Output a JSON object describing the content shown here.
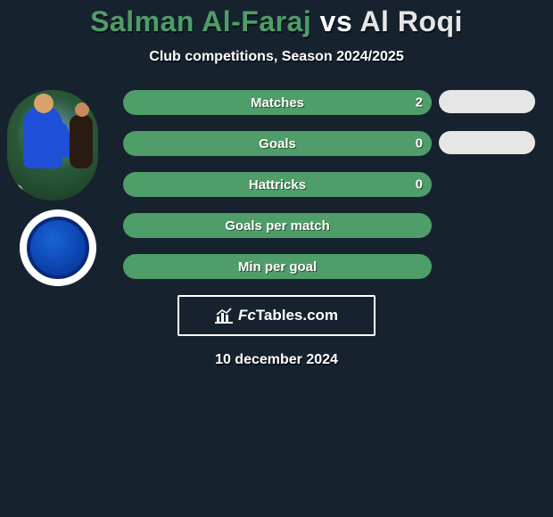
{
  "title": {
    "player1": "Salman Al-Faraj",
    "vs": " vs ",
    "player2": "Al Roqi",
    "player1_color": "#4f9d68",
    "vs_color": "#ffffff",
    "player2_color": "#e6e6e6"
  },
  "subtitle": "Club competitions, Season 2024/2025",
  "stats": {
    "bar_color_green": "#4f9d68",
    "bar_color_grey": "#e6e6e6",
    "rows": [
      {
        "label": "Matches",
        "value": "2",
        "show_value": true,
        "right_pill": true
      },
      {
        "label": "Goals",
        "value": "0",
        "show_value": true,
        "right_pill": true
      },
      {
        "label": "Hattricks",
        "value": "0",
        "show_value": true,
        "right_pill": false
      },
      {
        "label": "Goals per match",
        "value": "",
        "show_value": false,
        "right_pill": false
      },
      {
        "label": "Min per goal",
        "value": "",
        "show_value": false,
        "right_pill": false
      }
    ]
  },
  "branding": {
    "site": "FcTables.com",
    "icon_color": "#ffffff"
  },
  "date": "10 december 2024",
  "colors": {
    "background": "#16232f",
    "text": "#ffffff"
  }
}
